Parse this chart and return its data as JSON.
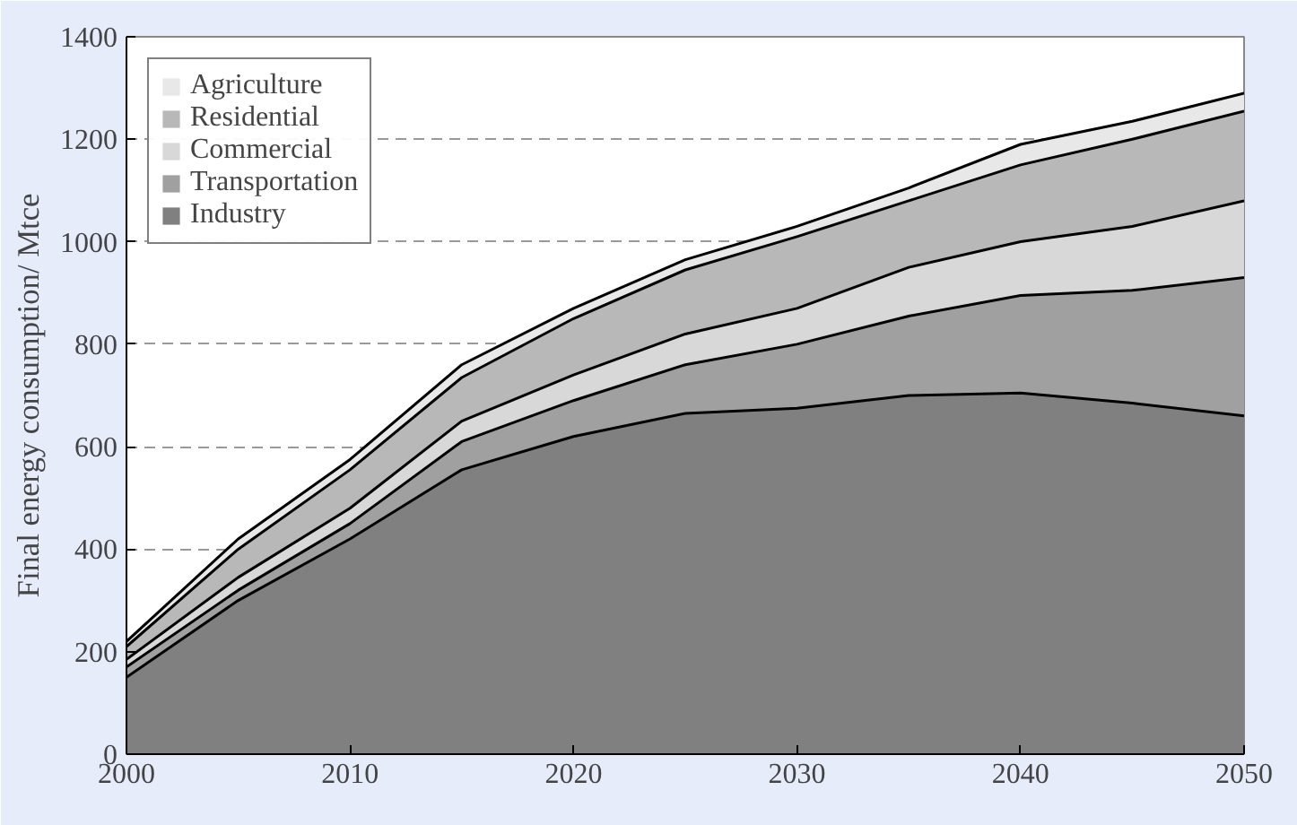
{
  "chart_data": {
    "type": "area",
    "stacked": true,
    "ylabel": "Final energy consumption/ Mtce",
    "x": [
      2000,
      2005,
      2010,
      2015,
      2020,
      2025,
      2030,
      2035,
      2040,
      2045,
      2050
    ],
    "xlim": [
      2000,
      2050
    ],
    "xticks": [
      2000,
      2010,
      2020,
      2030,
      2040,
      2050
    ],
    "ylim": [
      0,
      1400
    ],
    "yticks": [
      0,
      200,
      400,
      600,
      800,
      1000,
      1200,
      1400
    ],
    "grid": "y",
    "legend": "top left",
    "series": [
      {
        "name": "Industry",
        "color": "#808080",
        "values": [
          150,
          300,
          420,
          555,
          620,
          665,
          675,
          700,
          705,
          685,
          660
        ]
      },
      {
        "name": "Transportation",
        "color": "#a0a0a0",
        "values": [
          20,
          20,
          30,
          55,
          70,
          95,
          125,
          155,
          190,
          220,
          270
        ]
      },
      {
        "name": "Commercial",
        "color": "#d8d8d8",
        "values": [
          15,
          25,
          30,
          40,
          50,
          60,
          70,
          95,
          105,
          125,
          150
        ]
      },
      {
        "name": "Residential",
        "color": "#b8b8b8",
        "values": [
          25,
          55,
          75,
          85,
          110,
          125,
          140,
          130,
          150,
          170,
          175
        ]
      },
      {
        "name": "Agriculture",
        "color": "#e8e8e8",
        "values": [
          10,
          20,
          20,
          25,
          20,
          20,
          20,
          25,
          40,
          35,
          35
        ]
      }
    ]
  }
}
